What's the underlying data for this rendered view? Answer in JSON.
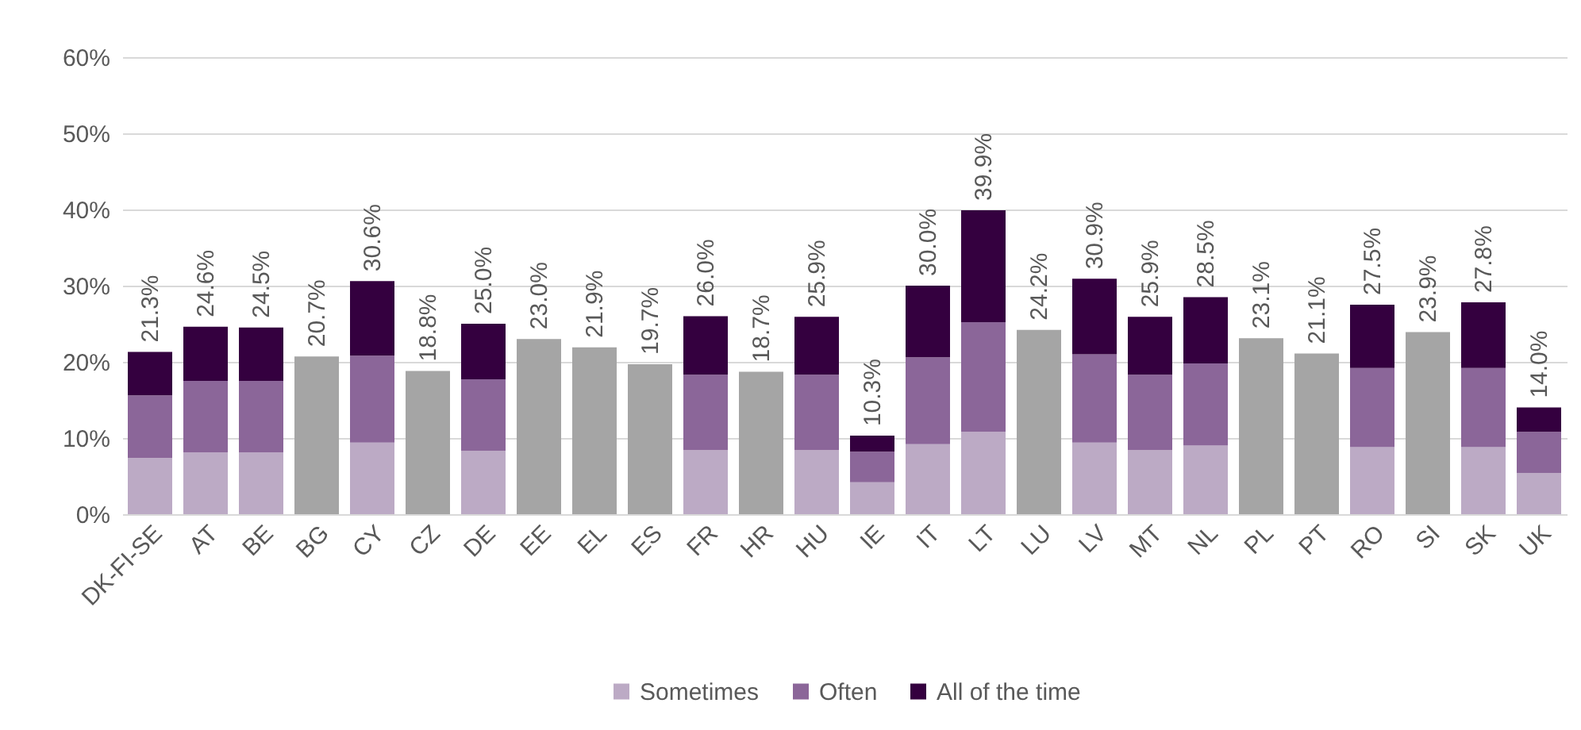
{
  "chart_data": {
    "type": "bar",
    "stacked": true,
    "categories": [
      "DK-FI-SE",
      "AT",
      "BE",
      "BG",
      "CY",
      "CZ",
      "DE",
      "EE",
      "EL",
      "ES",
      "FR",
      "HR",
      "HU",
      "IE",
      "IT",
      "LT",
      "LU",
      "LV",
      "MT",
      "NL",
      "PL",
      "PT",
      "RO",
      "SI",
      "SK",
      "UK"
    ],
    "series": [
      {
        "name": "Sometimes",
        "color": "#bcaac5",
        "values": [
          7.4,
          8.1,
          8.1,
          null,
          9.4,
          null,
          8.3,
          null,
          null,
          null,
          8.4,
          null,
          8.4,
          4.2,
          9.2,
          10.8,
          null,
          9.4,
          8.4,
          9.0,
          null,
          null,
          8.8,
          null,
          8.8,
          5.4
        ]
      },
      {
        "name": "Often",
        "color": "#8b6699",
        "values": [
          8.2,
          9.4,
          9.4,
          null,
          11.4,
          null,
          9.4,
          null,
          null,
          null,
          9.9,
          null,
          9.9,
          4.0,
          11.4,
          14.4,
          null,
          11.6,
          9.9,
          10.8,
          null,
          null,
          10.4,
          null,
          10.4,
          5.4
        ]
      },
      {
        "name": "All of the time",
        "color": "#34003f",
        "values": [
          5.7,
          7.1,
          7.0,
          null,
          9.8,
          null,
          7.3,
          null,
          null,
          null,
          7.7,
          null,
          7.6,
          2.1,
          9.4,
          14.7,
          null,
          9.9,
          7.6,
          8.7,
          null,
          null,
          8.3,
          null,
          8.6,
          3.2
        ]
      },
      {
        "color": "#a5a5a5",
        "values": [
          null,
          null,
          null,
          20.7,
          null,
          18.8,
          null,
          23.0,
          21.9,
          19.7,
          null,
          18.7,
          null,
          null,
          null,
          null,
          24.2,
          null,
          null,
          null,
          23.1,
          21.1,
          null,
          23.9,
          null,
          null
        ]
      }
    ],
    "totals": [
      "21.3%",
      "24.6%",
      "24.5%",
      "20.7%",
      "30.6%",
      "18.8%",
      "25.0%",
      "23.0%",
      "21.9%",
      "19.7%",
      "26.0%",
      "18.7%",
      "25.9%",
      "10.3%",
      "30.0%",
      "39.9%",
      "24.2%",
      "30.9%",
      "25.9%",
      "28.5%",
      "23.1%",
      "21.1%",
      "27.5%",
      "23.9%",
      "27.8%",
      "14.0%"
    ],
    "ylim": [
      0,
      60
    ],
    "yticks": [
      {
        "value": 0,
        "label": "0%"
      },
      {
        "value": 10,
        "label": "10%"
      },
      {
        "value": 20,
        "label": "20%"
      },
      {
        "value": 30,
        "label": "30%"
      },
      {
        "value": 40,
        "label": "40%"
      },
      {
        "value": 50,
        "label": "50%"
      },
      {
        "value": 60,
        "label": "60%"
      }
    ],
    "grid": "y",
    "legend": "bottom"
  }
}
